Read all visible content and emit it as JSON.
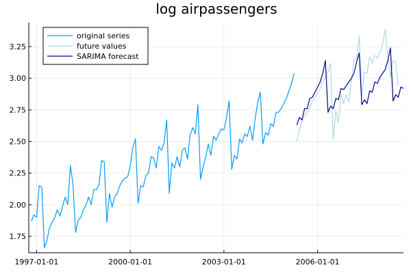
{
  "chart_data": {
    "type": "line",
    "title": "log airpassengers",
    "xlabel": "",
    "ylabel": "",
    "x_ticks": [
      "1997-01-01",
      "2000-01-01",
      "2003-01-01",
      "2006-01-01"
    ],
    "y_ticks": [
      "1.75",
      "2.00",
      "2.25",
      "2.50",
      "2.75",
      "3.00",
      "3.25"
    ],
    "xlim": [
      "1996-10-01",
      "2008-10-01"
    ],
    "ylim": [
      1.62,
      3.44
    ],
    "grid": true,
    "legend_position": "top-left",
    "series": [
      {
        "name": "original series",
        "color": "#009AF9",
        "start": "1996-11-01",
        "values": [
          1.87,
          1.92,
          1.9,
          2.15,
          2.14,
          1.66,
          1.72,
          1.82,
          1.86,
          1.9,
          1.96,
          1.91,
          1.99,
          2.06,
          2.0,
          2.31,
          2.16,
          1.78,
          1.88,
          1.9,
          1.96,
          2.0,
          2.06,
          2.0,
          2.12,
          2.12,
          2.16,
          2.35,
          2.34,
          1.86,
          2.09,
          1.98,
          2.06,
          2.09,
          2.15,
          2.19,
          2.21,
          2.22,
          2.31,
          2.45,
          2.52,
          2.01,
          2.15,
          2.14,
          2.23,
          2.25,
          2.38,
          2.37,
          2.29,
          2.46,
          2.43,
          2.49,
          2.67,
          2.09,
          2.33,
          2.29,
          2.38,
          2.3,
          2.43,
          2.45,
          2.36,
          2.55,
          2.61,
          2.56,
          2.79,
          2.2,
          2.3,
          2.38,
          2.48,
          2.39,
          2.54,
          2.51,
          2.56,
          2.6,
          2.59,
          2.69,
          2.82,
          2.28,
          2.39,
          2.36,
          2.52,
          2.49,
          2.56,
          2.54,
          2.62,
          2.51,
          2.68,
          2.81,
          2.89,
          2.48,
          2.57,
          2.55,
          2.64,
          2.62,
          2.73,
          2.73,
          2.76,
          2.8,
          2.84,
          2.9,
          2.96,
          3.04
        ]
      },
      {
        "name": "future values",
        "color": "#ADD8E6",
        "start": "2005-05-01",
        "values": [
          2.5,
          2.59,
          2.66,
          2.7,
          2.73,
          2.77,
          2.82,
          2.85,
          2.88,
          2.92,
          2.97,
          3.01,
          3.05,
          3.12,
          2.52,
          2.74,
          2.65,
          2.87,
          2.8,
          2.87,
          2.81,
          2.99,
          3.15,
          3.16,
          3.33,
          2.86,
          3.05,
          3.04,
          3.17,
          3.12,
          3.18,
          3.16,
          3.21,
          3.27,
          3.39,
          3.17,
          3.01,
          3.14,
          3.13,
          2.94
        ]
      },
      {
        "name": "SARIMA forecast",
        "color": "#00008B",
        "start": "2005-05-01",
        "values": [
          2.63,
          2.69,
          2.67,
          2.76,
          2.76,
          2.84,
          2.85,
          2.89,
          2.93,
          2.97,
          3.04,
          3.14,
          2.73,
          2.78,
          2.76,
          2.84,
          2.83,
          2.92,
          2.91,
          2.94,
          2.97,
          3.0,
          3.04,
          3.13,
          3.2,
          2.79,
          2.83,
          2.8,
          2.9,
          2.89,
          2.97,
          2.96,
          3.01,
          3.04,
          3.07,
          3.14,
          3.24,
          2.82,
          2.87,
          2.85,
          2.93,
          2.92
        ]
      }
    ]
  }
}
